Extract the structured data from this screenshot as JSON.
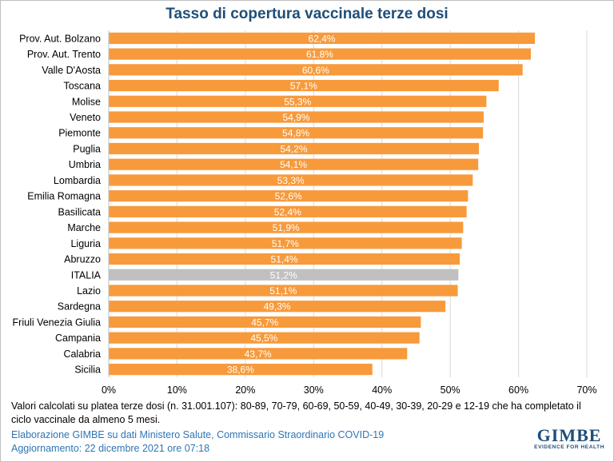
{
  "chart_data": {
    "type": "bar",
    "orientation": "horizontal",
    "title": "Tasso di copertura vaccinale terze dosi",
    "categories": [
      "Prov. Aut. Bolzano",
      "Prov. Aut. Trento",
      "Valle D'Aosta",
      "Toscana",
      "Molise",
      "Veneto",
      "Piemonte",
      "Puglia",
      "Umbria",
      "Lombardia",
      "Emilia Romagna",
      "Basilicata",
      "Marche",
      "Liguria",
      "Abruzzo",
      "ITALIA",
      "Lazio",
      "Sardegna",
      "Friuli Venezia Giulia",
      "Campania",
      "Calabria",
      "Sicilia"
    ],
    "values": [
      62.4,
      61.8,
      60.6,
      57.1,
      55.3,
      54.9,
      54.8,
      54.2,
      54.1,
      53.3,
      52.6,
      52.4,
      51.9,
      51.7,
      51.4,
      51.2,
      51.1,
      49.3,
      45.7,
      45.5,
      43.7,
      38.6
    ],
    "value_labels": [
      "62,4%",
      "61,8%",
      "60,6%",
      "57,1%",
      "55,3%",
      "54,9%",
      "54,8%",
      "54,2%",
      "54,1%",
      "53,3%",
      "52,6%",
      "52,4%",
      "51,9%",
      "51,7%",
      "51,4%",
      "51,2%",
      "51,1%",
      "49,3%",
      "45,7%",
      "45,5%",
      "43,7%",
      "38,6%"
    ],
    "highlight_category": "ITALIA",
    "xlim": [
      0,
      70
    ],
    "xticks": [
      0,
      10,
      20,
      30,
      40,
      50,
      60,
      70
    ],
    "xtick_labels": [
      "0%",
      "10%",
      "20%",
      "30%",
      "40%",
      "50%",
      "60%",
      "70%"
    ],
    "grid": true,
    "bar_color": "#f79a3b",
    "highlight_color": "#c0c0c0",
    "label_color": "#ffffff"
  },
  "footer": {
    "note": "Valori calcolati su platea terze dosi (n. 31.001.107): 80-89, 70-79, 60-69, 50-59, 40-49, 30-39, 20-29 e 12-19 che ha completato il ciclo vaccinale da almeno 5 mesi.",
    "source": "Elaborazione GIMBE su dati Ministero Salute, Commissario Straordinario COVID-19",
    "updated": "Aggiornamento: 22 dicembre 2021 ore 07:18"
  },
  "logo": {
    "word": "GIMBE",
    "tagline": "EVIDENCE FOR HEALTH",
    "color": "#1f4e79"
  }
}
